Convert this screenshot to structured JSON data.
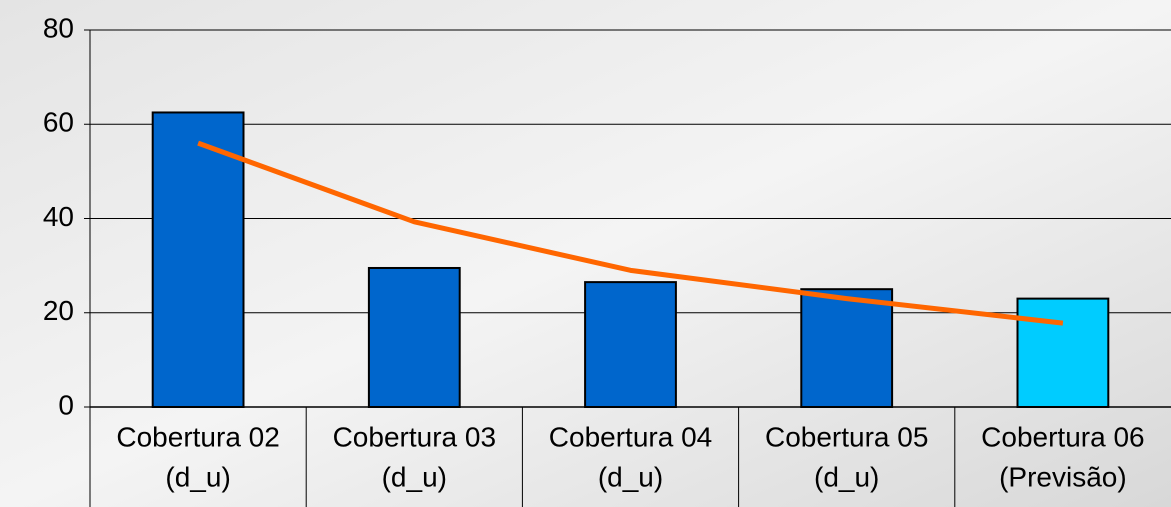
{
  "chart_data": {
    "type": "bar",
    "categories": [
      [
        "Cobertura 02",
        "(d_u)"
      ],
      [
        "Cobertura 03",
        "(d_u)"
      ],
      [
        "Cobertura 04",
        "(d_u)"
      ],
      [
        "Cobertura 05",
        "(d_u)"
      ],
      [
        "Cobertura 06",
        "(Previsão)"
      ]
    ],
    "values": [
      62.5,
      29.5,
      26.5,
      25,
      23
    ],
    "colors": [
      "#0066cc",
      "#0066cc",
      "#0066cc",
      "#0066cc",
      "#00ccff"
    ],
    "trend": {
      "color": "#ff6600",
      "values": [
        56,
        39.3,
        29,
        23,
        17.8
      ]
    },
    "ylim": [
      0,
      80
    ],
    "yticks": [
      0,
      20,
      40,
      60,
      80
    ],
    "grid": true
  }
}
